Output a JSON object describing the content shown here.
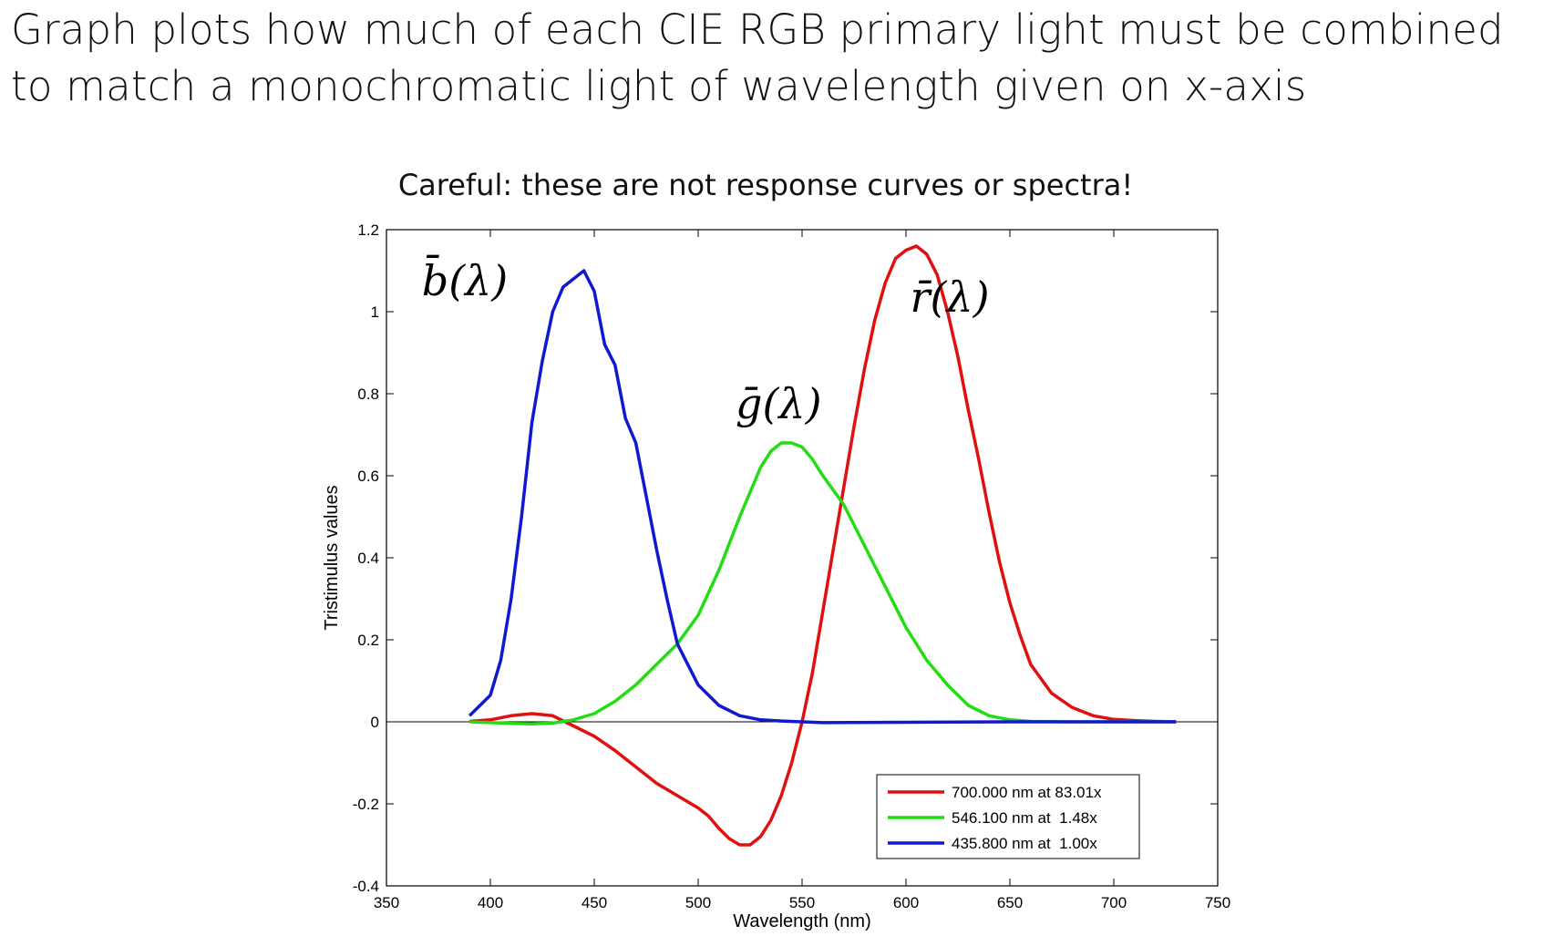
{
  "heading": {
    "line1": "Graph plots how much of each CIE RGB primary light must be combined",
    "line2": "to match a monochromatic light of wavelength given on x-axis"
  },
  "subtitle": "Careful: these are not response curves or spectra!",
  "chart_data": {
    "type": "line",
    "xlabel": "Wavelength (nm)",
    "ylabel": "Tristimulus values",
    "xlim": [
      350,
      750
    ],
    "ylim": [
      -0.4,
      1.2
    ],
    "xticks": [
      350,
      400,
      450,
      500,
      550,
      600,
      650,
      700,
      750
    ],
    "yticks": [
      -0.4,
      -0.2,
      0,
      0.2,
      0.4,
      0.6,
      0.8,
      1,
      1.2
    ],
    "xtick_labels": [
      "350",
      "400",
      "450",
      "500",
      "550",
      "600",
      "650",
      "700",
      "750"
    ],
    "ytick_labels": [
      "-0.4",
      "-0.2",
      "0",
      "0.2",
      "0.4",
      "0.6",
      "0.8",
      "1",
      "1.2"
    ],
    "grid": false,
    "legend_position": "bottom-right",
    "series": [
      {
        "name": "700.000 nm at 83.01x",
        "curve_label": "r̄(λ)",
        "color": "#e01010",
        "x": [
          390,
          400,
          410,
          420,
          430,
          440,
          450,
          460,
          470,
          480,
          490,
          500,
          505,
          510,
          515,
          520,
          525,
          530,
          535,
          540,
          545,
          550,
          555,
          560,
          565,
          570,
          575,
          580,
          585,
          590,
          595,
          600,
          605,
          610,
          615,
          620,
          625,
          630,
          635,
          640,
          645,
          650,
          655,
          660,
          670,
          680,
          690,
          700,
          710,
          720,
          730
        ],
        "y": [
          0.001,
          0.005,
          0.015,
          0.02,
          0.015,
          -0.01,
          -0.035,
          -0.07,
          -0.11,
          -0.15,
          -0.18,
          -0.21,
          -0.23,
          -0.26,
          -0.285,
          -0.3,
          -0.3,
          -0.28,
          -0.24,
          -0.18,
          -0.1,
          0.0,
          0.12,
          0.27,
          0.42,
          0.57,
          0.72,
          0.86,
          0.98,
          1.07,
          1.13,
          1.15,
          1.16,
          1.14,
          1.09,
          1.0,
          0.89,
          0.76,
          0.64,
          0.51,
          0.39,
          0.29,
          0.21,
          0.14,
          0.07,
          0.035,
          0.015,
          0.006,
          0.003,
          0.001,
          0.0
        ]
      },
      {
        "name": "546.100 nm at  1.48x",
        "curve_label": "ḡ(λ)",
        "color": "#22dd11",
        "x": [
          390,
          400,
          410,
          420,
          430,
          440,
          450,
          460,
          470,
          480,
          490,
          500,
          510,
          520,
          530,
          535,
          540,
          545,
          550,
          555,
          560,
          570,
          580,
          590,
          600,
          610,
          620,
          630,
          640,
          650,
          660,
          680,
          700,
          730
        ],
        "y": [
          0.0,
          -0.002,
          -0.004,
          -0.005,
          -0.003,
          0.005,
          0.02,
          0.05,
          0.09,
          0.14,
          0.19,
          0.26,
          0.37,
          0.5,
          0.62,
          0.66,
          0.68,
          0.68,
          0.67,
          0.64,
          0.6,
          0.53,
          0.43,
          0.33,
          0.23,
          0.15,
          0.09,
          0.04,
          0.015,
          0.005,
          0.001,
          0.0,
          0.0,
          0.0
        ]
      },
      {
        "name": "435.800 nm at  1.00x",
        "curve_label": "b̄(λ)",
        "color": "#1018d0",
        "x": [
          390,
          400,
          405,
          410,
          415,
          420,
          425,
          430,
          435,
          440,
          445,
          450,
          455,
          460,
          465,
          470,
          475,
          480,
          485,
          490,
          500,
          510,
          520,
          530,
          540,
          550,
          560,
          600,
          650,
          700,
          730
        ],
        "y": [
          0.015,
          0.065,
          0.15,
          0.3,
          0.5,
          0.73,
          0.88,
          1.0,
          1.06,
          1.08,
          1.1,
          1.05,
          0.92,
          0.87,
          0.74,
          0.68,
          0.55,
          0.42,
          0.3,
          0.19,
          0.09,
          0.04,
          0.015,
          0.005,
          0.002,
          0.0,
          -0.002,
          -0.001,
          0.0,
          0.0,
          0.0
        ]
      }
    ]
  }
}
